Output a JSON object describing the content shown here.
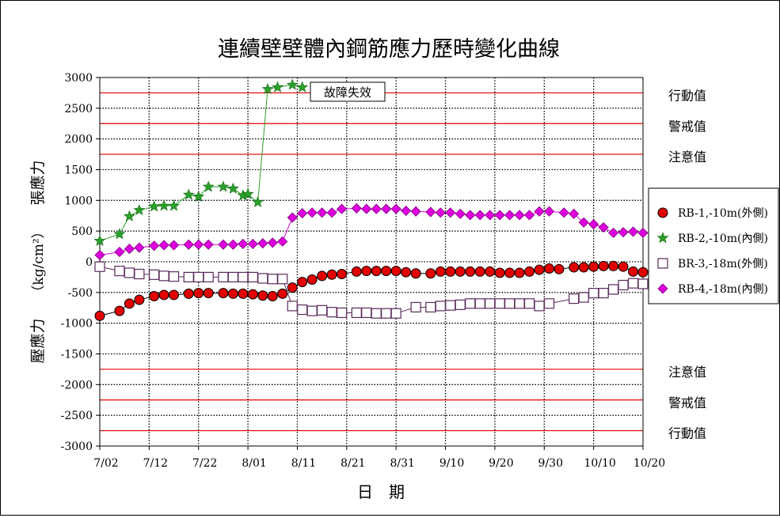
{
  "chart_data": {
    "type": "line",
    "title": "連續壁壁體內鋼筋應力歷時變化曲線",
    "xlabel": "日　期",
    "ylabel_tension": "張應力",
    "ylabel_unit": "（kg/cm²）",
    "ylabel_compression": "壓應力",
    "ylim": [
      -3000,
      3000
    ],
    "yticks": [
      3000,
      2500,
      2000,
      1500,
      1000,
      500,
      0,
      -500,
      -1000,
      -1500,
      -2000,
      -2500,
      -3000
    ],
    "xlim": [
      0,
      110
    ],
    "xticks": [
      {
        "x": 0,
        "label": "7/02"
      },
      {
        "x": 10,
        "label": "7/12"
      },
      {
        "x": 20,
        "label": "7/22"
      },
      {
        "x": 30,
        "label": "8/01"
      },
      {
        "x": 40,
        "label": "8/11"
      },
      {
        "x": 50,
        "label": "8/21"
      },
      {
        "x": 60,
        "label": "8/31"
      },
      {
        "x": 70,
        "label": "9/10"
      },
      {
        "x": 80,
        "label": "9/20"
      },
      {
        "x": 90,
        "label": "9/30"
      },
      {
        "x": 100,
        "label": "10/10"
      },
      {
        "x": 110,
        "label": "10/20"
      }
    ],
    "grid": true,
    "thresholds": [
      {
        "value": 2750,
        "label": "行動值"
      },
      {
        "value": 2250,
        "label": "警戒值"
      },
      {
        "value": 1750,
        "label": "注意值"
      },
      {
        "value": -1750,
        "label": "注意值"
      },
      {
        "value": -2250,
        "label": "警戒值"
      },
      {
        "value": -2750,
        "label": "行動值"
      }
    ],
    "threshold_color": "#e00000",
    "annotation": {
      "text": "故障失效",
      "x": 45,
      "y": 2800
    },
    "legend_position": "right",
    "series": [
      {
        "name": "RB-1,-10m(外側)",
        "marker": "circle",
        "color": "#e00000",
        "line_color": "#000000",
        "x": [
          0,
          4,
          6,
          8,
          11,
          13,
          15,
          18,
          20,
          22,
          25,
          27,
          29,
          31,
          33,
          35,
          37,
          39,
          41,
          43,
          45,
          47,
          49,
          52,
          54,
          56,
          58,
          60,
          62,
          64,
          67,
          69,
          71,
          73,
          75,
          77,
          79,
          81,
          83,
          85,
          87,
          89,
          91,
          93,
          96,
          98,
          100,
          102,
          104,
          106,
          108,
          110
        ],
        "y": [
          -880,
          -800,
          -680,
          -620,
          -560,
          -540,
          -540,
          -520,
          -510,
          -510,
          -510,
          -520,
          -520,
          -530,
          -550,
          -560,
          -520,
          -420,
          -330,
          -290,
          -230,
          -210,
          -200,
          -160,
          -150,
          -150,
          -150,
          -150,
          -170,
          -190,
          -190,
          -160,
          -160,
          -160,
          -160,
          -160,
          -160,
          -180,
          -180,
          -180,
          -160,
          -130,
          -110,
          -120,
          -90,
          -90,
          -80,
          -70,
          -70,
          -80,
          -160,
          -170
        ]
      },
      {
        "name": "RB-2,-10m(內側)",
        "marker": "star",
        "color": "#2aa02a",
        "line_color": "#2aa02a",
        "x": [
          0,
          4,
          6,
          8,
          11,
          13,
          15,
          18,
          20,
          22,
          25,
          27,
          29,
          30,
          32,
          34,
          36,
          39,
          41
        ],
        "y": [
          340,
          450,
          740,
          840,
          900,
          910,
          910,
          1090,
          1060,
          1220,
          1220,
          1190,
          1080,
          1100,
          970,
          2810,
          2840,
          2880,
          2840
        ]
      },
      {
        "name": "BR-3,-18m(外側)",
        "marker": "square",
        "color": "#ffffff",
        "line_color": "#5a2a5a",
        "x": [
          0,
          4,
          6,
          8,
          11,
          13,
          15,
          18,
          20,
          22,
          25,
          27,
          29,
          31,
          33,
          35,
          37,
          39,
          41,
          43,
          45,
          47,
          49,
          52,
          54,
          56,
          58,
          60,
          64,
          67,
          69,
          71,
          73,
          75,
          77,
          79,
          81,
          83,
          85,
          87,
          89,
          91,
          96,
          98,
          100,
          102,
          104,
          106,
          108,
          110
        ],
        "y": [
          -80,
          -150,
          -180,
          -200,
          -210,
          -230,
          -240,
          -250,
          -250,
          -250,
          -250,
          -250,
          -250,
          -250,
          -270,
          -280,
          -280,
          -720,
          -780,
          -800,
          -790,
          -820,
          -830,
          -830,
          -830,
          -840,
          -840,
          -840,
          -740,
          -740,
          -720,
          -710,
          -700,
          -680,
          -680,
          -680,
          -680,
          -680,
          -680,
          -680,
          -720,
          -680,
          -600,
          -580,
          -510,
          -510,
          -450,
          -380,
          -350,
          -360
        ]
      },
      {
        "name": "RB-4,-18m(內側)",
        "marker": "diamond",
        "color": "#dd00dd",
        "line_color": "#dd00dd",
        "x": [
          0,
          4,
          6,
          8,
          11,
          13,
          15,
          18,
          20,
          22,
          25,
          27,
          29,
          31,
          33,
          35,
          37,
          39,
          41,
          43,
          45,
          47,
          49,
          52,
          54,
          56,
          58,
          60,
          62,
          64,
          67,
          69,
          71,
          73,
          75,
          77,
          79,
          81,
          83,
          85,
          87,
          89,
          91,
          94,
          96,
          98,
          100,
          102,
          104,
          106,
          108,
          110
        ],
        "y": [
          110,
          160,
          210,
          230,
          260,
          270,
          270,
          280,
          280,
          280,
          280,
          280,
          290,
          290,
          300,
          310,
          330,
          720,
          790,
          800,
          800,
          800,
          860,
          870,
          860,
          860,
          860,
          860,
          830,
          820,
          810,
          800,
          800,
          780,
          760,
          760,
          760,
          760,
          760,
          760,
          760,
          820,
          820,
          800,
          780,
          640,
          610,
          560,
          470,
          480,
          490,
          470
        ]
      }
    ]
  }
}
